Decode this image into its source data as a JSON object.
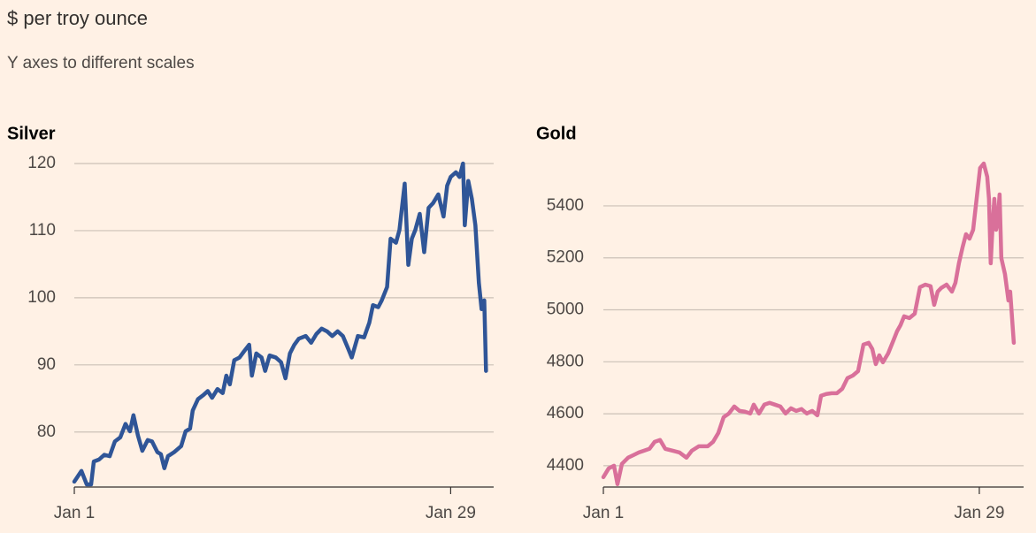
{
  "title": "$ per troy ounce",
  "subtitle": "Y axes to different scales",
  "chart_data": [
    {
      "type": "line",
      "title": "Silver",
      "color": "#2f5597",
      "grid": true,
      "xlim": [
        0,
        31.2
      ],
      "xticks": [
        {
          "value": 0,
          "label": "Jan 1"
        },
        {
          "value": 28,
          "label": "Jan 29"
        }
      ],
      "ylim": [
        71.8,
        120
      ],
      "yticks": [
        80,
        90,
        100,
        110,
        120
      ],
      "x": [
        0,
        0.53,
        0.92,
        1.25,
        1.45,
        1.84,
        2.23,
        2.63,
        3.02,
        3.42,
        3.81,
        4.14,
        4.4,
        4.73,
        5.06,
        5.46,
        5.78,
        6.18,
        6.44,
        6.7,
        6.97,
        7.43,
        7.95,
        8.28,
        8.61,
        8.81,
        9.2,
        9.6,
        9.93,
        10.25,
        10.65,
        11.04,
        11.31,
        11.57,
        11.9,
        12.29,
        12.62,
        13.01,
        13.21,
        13.54,
        13.93,
        14.2,
        14.53,
        14.99,
        15.38,
        15.71,
        16.04,
        16.37,
        16.7,
        17.22,
        17.62,
        18.01,
        18.4,
        18.8,
        19.19,
        19.59,
        19.98,
        20.38,
        20.64,
        21.1,
        21.56,
        21.95,
        22.22,
        22.61,
        22.87,
        23.27,
        23.53,
        23.93,
        24.19,
        24.58,
        24.85,
        25.11,
        25.37,
        25.7,
        26.03,
        26.36,
        26.69,
        27.08,
        27.47,
        27.74,
        28.0,
        28.39,
        28.66,
        28.92,
        29.05,
        29.31,
        29.58,
        29.84,
        30.1,
        30.3,
        30.5,
        30.63
      ],
      "values": [
        72.6,
        74.2,
        72.2,
        72.2,
        75.6,
        75.9,
        76.6,
        76.4,
        78.6,
        79.2,
        81.2,
        80.1,
        82.5,
        79.5,
        77.2,
        78.8,
        78.6,
        77.0,
        76.7,
        74.6,
        76.4,
        77.0,
        77.9,
        80.1,
        80.5,
        83.2,
        84.9,
        85.5,
        86.1,
        85.1,
        86.4,
        85.8,
        88.4,
        87.1,
        90.7,
        91.1,
        92.0,
        93.0,
        88.4,
        91.7,
        91.1,
        89.1,
        91.4,
        91.1,
        90.4,
        88.0,
        91.7,
        93.0,
        93.9,
        94.3,
        93.3,
        94.6,
        95.4,
        95.0,
        94.3,
        95.0,
        94.3,
        92.4,
        91.1,
        94.3,
        94.1,
        96.3,
        98.9,
        98.6,
        99.6,
        101.6,
        108.8,
        108.2,
        110.1,
        117.0,
        104.9,
        108.8,
        110.1,
        112.5,
        106.8,
        113.4,
        114.1,
        115.4,
        112.1,
        116.7,
        118.0,
        118.7,
        118.0,
        120.0,
        110.8,
        117.4,
        114.7,
        110.8,
        102.2,
        98.3,
        99.6,
        89.1
      ]
    },
    {
      "type": "line",
      "title": "Gold",
      "color": "#d9709a",
      "grid": true,
      "xlim": [
        0,
        31.3
      ],
      "xticks": [
        {
          "value": 0,
          "label": "Jan 1"
        },
        {
          "value": 28,
          "label": "Jan 29"
        }
      ],
      "ylim": [
        4318,
        5563
      ],
      "yticks": [
        4400,
        4600,
        4800,
        5000,
        5200,
        5400
      ],
      "x": [
        0,
        0.4,
        0.79,
        1.05,
        1.38,
        1.84,
        2.24,
        2.64,
        3.03,
        3.43,
        3.82,
        4.22,
        4.61,
        5.14,
        5.67,
        6.19,
        6.59,
        7.11,
        7.77,
        8.17,
        8.56,
        8.96,
        9.35,
        9.75,
        10.14,
        10.54,
        10.94,
        11.2,
        11.59,
        11.99,
        12.38,
        12.78,
        13.18,
        13.57,
        13.97,
        14.36,
        14.76,
        15.15,
        15.55,
        15.94,
        16.21,
        16.6,
        17.0,
        17.39,
        17.79,
        18.18,
        18.58,
        18.97,
        19.37,
        19.76,
        20.03,
        20.29,
        20.55,
        20.82,
        21.21,
        21.61,
        21.87,
        22.13,
        22.4,
        22.79,
        23.19,
        23.58,
        23.98,
        24.37,
        24.64,
        24.9,
        25.16,
        25.56,
        25.96,
        26.22,
        26.48,
        26.75,
        27.01,
        27.27,
        27.54,
        27.8,
        28.06,
        28.33,
        28.59,
        28.72,
        28.85,
        28.99,
        29.12,
        29.25,
        29.38,
        29.51,
        29.64,
        29.91,
        30.17,
        30.3,
        30.57
      ],
      "values": [
        4356,
        4390,
        4400,
        4329,
        4407,
        4431,
        4441,
        4451,
        4458,
        4465,
        4492,
        4499,
        4465,
        4458,
        4451,
        4431,
        4458,
        4475,
        4475,
        4492,
        4526,
        4587,
        4601,
        4628,
        4611,
        4608,
        4601,
        4635,
        4601,
        4635,
        4642,
        4635,
        4628,
        4601,
        4621,
        4611,
        4618,
        4601,
        4611,
        4594,
        4669,
        4676,
        4679,
        4679,
        4696,
        4737,
        4747,
        4764,
        4866,
        4873,
        4849,
        4791,
        4825,
        4798,
        4832,
        4883,
        4917,
        4941,
        4975,
        4968,
        4985,
        5087,
        5097,
        5091,
        5019,
        5070,
        5084,
        5097,
        5070,
        5104,
        5179,
        5240,
        5291,
        5274,
        5308,
        5427,
        5546,
        5563,
        5512,
        5427,
        5179,
        5325,
        5427,
        5308,
        5342,
        5444,
        5199,
        5138,
        5036,
        5070,
        4873
      ]
    }
  ]
}
